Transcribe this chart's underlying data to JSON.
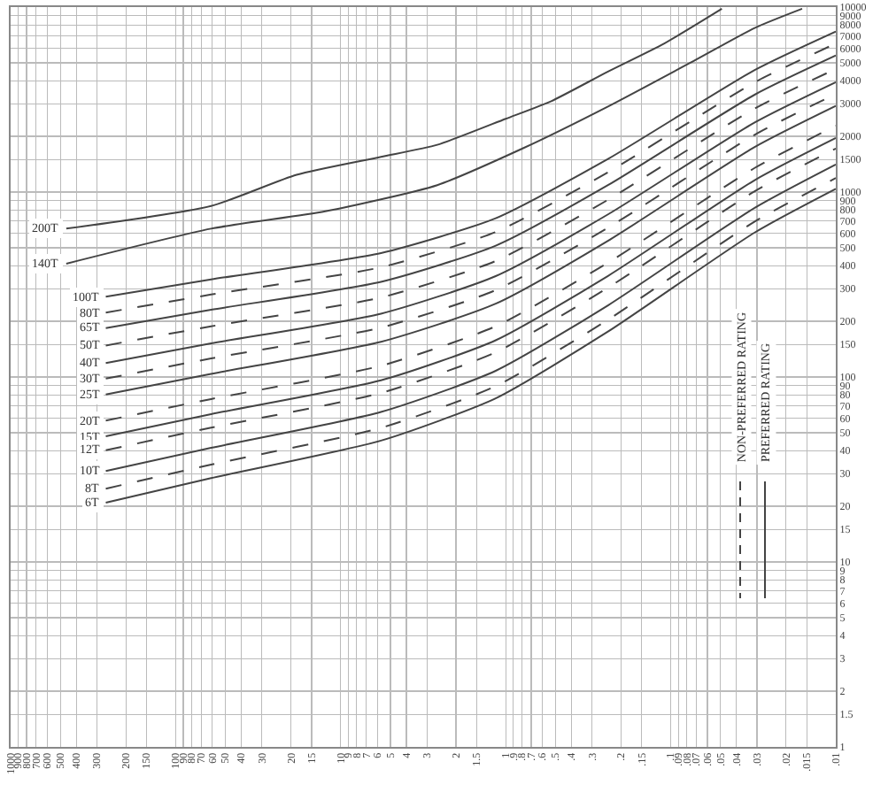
{
  "chart_data": {
    "type": "line",
    "log": "xy",
    "grid": true,
    "x": [
      265,
      61,
      5.7,
      1.15,
      0.24,
      0.031,
      0.01
    ],
    "xlim": [
      1000,
      0.01
    ],
    "ylim": [
      1,
      10000
    ],
    "xticks": [
      1000,
      900,
      800,
      700,
      600,
      500,
      400,
      300,
      200,
      150,
      100,
      90,
      80,
      70,
      60,
      50,
      40,
      30,
      20,
      15,
      10,
      9,
      8,
      7,
      6,
      5,
      4,
      3,
      2,
      1.5,
      1,
      {
        "value": 0.9,
        "label": ".9"
      },
      {
        "value": 0.8,
        "label": ".8"
      },
      {
        "value": 0.7,
        "label": ".7"
      },
      {
        "value": 0.6,
        "label": ".6"
      },
      {
        "value": 0.5,
        "label": ".5"
      },
      {
        "value": 0.4,
        "label": ".4"
      },
      {
        "value": 0.3,
        "label": ".3"
      },
      {
        "value": 0.2,
        "label": ".2"
      },
      {
        "value": 0.15,
        "label": ".15"
      },
      {
        "value": 0.1,
        "label": ".1"
      },
      {
        "value": 0.09,
        "label": ".09"
      },
      {
        "value": 0.08,
        "label": ".08"
      },
      {
        "value": 0.07,
        "label": ".07"
      },
      {
        "value": 0.06,
        "label": ".06"
      },
      {
        "value": 0.05,
        "label": ".05"
      },
      {
        "value": 0.04,
        "label": ".04"
      },
      {
        "value": 0.03,
        "label": ".03"
      },
      {
        "value": 0.02,
        "label": ".02"
      },
      {
        "value": 0.015,
        "label": ".015"
      },
      {
        "value": 0.01,
        "label": ".01"
      }
    ],
    "yticks": [
      1,
      1.5,
      2,
      3,
      4,
      5,
      6,
      7,
      8,
      9,
      10,
      15,
      20,
      30,
      40,
      50,
      60,
      70,
      80,
      90,
      100,
      150,
      200,
      300,
      400,
      500,
      600,
      700,
      800,
      900,
      1000,
      1500,
      2000,
      3000,
      4000,
      5000,
      6000,
      7000,
      8000,
      9000,
      10000
    ],
    "annotations": [
      "PREFERRED RATING",
      "NON-PREFERRED RATING"
    ],
    "series": [
      {
        "name": "200T",
        "color": "#444444",
        "line_style": "solid",
        "x": [
          460,
          61,
          18.5,
          5.7,
          2.6,
          1,
          0.53,
          0.24,
          0.11,
          0.049
        ],
        "values": [
          634,
          841,
          1240,
          1550,
          1800,
          2490,
          3100,
          4480,
          6340,
          9790
        ]
      },
      {
        "name": "140T",
        "color": "#444444",
        "line_style": "solid",
        "x": [
          460,
          61,
          12.4,
          2.6,
          0.79,
          0.24,
          0.073,
          0.031,
          0.016
        ],
        "values": [
          410,
          634,
          787,
          1090,
          1720,
          2900,
          5100,
          7710,
          9790
        ]
      },
      {
        "name": "100T",
        "color": "#444444",
        "line_style": "solid",
        "values": [
          272,
          337,
          468,
          722,
          1510,
          4570,
          7380
        ]
      },
      {
        "name": "80T",
        "color": "#444444",
        "line_style": "dashed",
        "values": [
          223,
          279,
          392,
          608,
          1280,
          3920,
          6350
        ]
      },
      {
        "name": "65T",
        "color": "#444444",
        "line_style": "solid",
        "values": [
          184,
          231,
          327,
          513,
          1090,
          3360,
          5470
        ]
      },
      {
        "name": "50T",
        "color": "#444444",
        "line_style": "dashed",
        "values": [
          148,
          188,
          269,
          424,
          908,
          2830,
          4630
        ]
      },
      {
        "name": "40T",
        "color": "#444444",
        "line_style": "solid",
        "values": [
          119,
          152,
          220,
          351,
          757,
          2380,
          3930
        ]
      },
      {
        "name": "30T",
        "color": "#444444",
        "line_style": "dashed",
        "values": [
          98,
          126,
          185,
          295,
          641,
          2040,
          3390
        ]
      },
      {
        "name": "25T",
        "color": "#444444",
        "line_style": "solid",
        "values": [
          80.5,
          104,
          155,
          249,
          545,
          1750,
          2920
        ]
      },
      {
        "name": "20T",
        "color": "#444444",
        "line_style": "dashed",
        "values": [
          58.1,
          76,
          115,
          188,
          415,
          1350,
          2280
        ]
      },
      {
        "name": "15T",
        "color": "#444444",
        "line_style": "solid",
        "values": [
          47.8,
          63,
          95.9,
          158,
          352,
          1160,
          1960
        ]
      },
      {
        "name": "12T",
        "color": "#444444",
        "line_style": "dashed",
        "values": [
          40.2,
          53.2,
          82,
          136,
          304,
          1010,
          1720
        ]
      },
      {
        "name": "10T",
        "color": "#444444",
        "line_style": "solid",
        "values": [
          31,
          41.4,
          64.7,
          108,
          244,
          822,
          1410
        ]
      },
      {
        "name": "8T",
        "color": "#444444",
        "line_style": "dashed",
        "values": [
          24.9,
          33.6,
          53.1,
          89.3,
          204,
          692,
          1190
        ]
      },
      {
        "name": "6T",
        "color": "#444444",
        "line_style": "solid",
        "values": [
          20.9,
          28.4,
          45.3,
          76.7,
          176,
          604,
          1040
        ]
      }
    ]
  }
}
